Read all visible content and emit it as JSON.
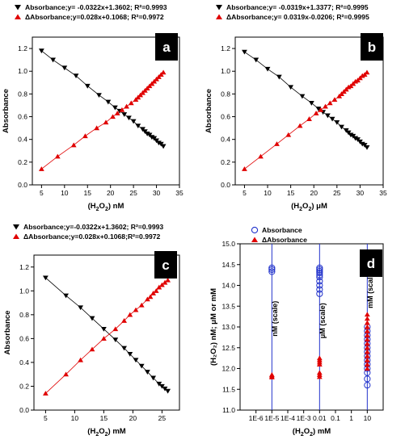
{
  "colors": {
    "absorbance": "#000000",
    "delta": "#e00000",
    "d_abs": "#2233cc",
    "d_delta": "#e00000",
    "badge": "#000000"
  },
  "chart_data": [
    {
      "id": "a",
      "type": "scatter",
      "badge": "a",
      "xlabel_main": "(H",
      "xlabel_sub": "2",
      "xlabel_mid": "O",
      "xlabel_sub2": "2",
      "xlabel_unit": ") nM",
      "ylabel": "Absorbance",
      "xlim": [
        3,
        35
      ],
      "ylim": [
        0.0,
        1.3
      ],
      "xticks": [
        5,
        10,
        15,
        20,
        25,
        30,
        35
      ],
      "xtick_labels": [
        "5",
        "10",
        "15",
        "20",
        "25",
        "30",
        "35"
      ],
      "yticks": [
        0.0,
        0.2,
        0.4,
        0.6,
        0.8,
        1.0,
        1.2
      ],
      "ytick_labels": [
        "0.0",
        "0.2",
        "0.4",
        "0.6",
        "0.8",
        "1.0",
        "1.2"
      ],
      "legend": [
        "Absorbance;y= -0.0322x+1.3602; R²=0.9993",
        "ΔAbsorbance;y=0.028x+0.1068; R²=0.9972"
      ],
      "series": [
        {
          "marker": "down",
          "x": [
            5,
            7.5,
            10,
            12.5,
            15,
            17.5,
            19.5,
            21,
            22,
            23,
            24,
            25,
            26,
            27,
            27.5,
            28,
            28.5,
            29,
            29.5,
            30,
            30.5,
            31,
            31.5
          ],
          "y": [
            1.18,
            1.1,
            1.03,
            0.96,
            0.87,
            0.79,
            0.73,
            0.68,
            0.65,
            0.62,
            0.59,
            0.56,
            0.52,
            0.49,
            0.47,
            0.45,
            0.44,
            0.42,
            0.41,
            0.39,
            0.37,
            0.36,
            0.34
          ]
        },
        {
          "marker": "up",
          "x": [
            5,
            8.5,
            12,
            14.5,
            17,
            19,
            20.5,
            21.5,
            22.5,
            23.5,
            24.5,
            25.5,
            26,
            26.5,
            27,
            27.5,
            28,
            28.5,
            29,
            29.5,
            30,
            30.5,
            31,
            31.5
          ],
          "y": [
            0.14,
            0.25,
            0.35,
            0.43,
            0.5,
            0.55,
            0.6,
            0.63,
            0.66,
            0.69,
            0.72,
            0.75,
            0.77,
            0.79,
            0.81,
            0.83,
            0.85,
            0.87,
            0.89,
            0.91,
            0.93,
            0.95,
            0.97,
            0.99
          ]
        }
      ]
    },
    {
      "id": "b",
      "type": "scatter",
      "badge": "b",
      "xlabel_main": "(H",
      "xlabel_sub": "2",
      "xlabel_mid": "O",
      "xlabel_sub2": "2",
      "xlabel_unit": ") μM",
      "ylabel": "Absorbance",
      "xlim": [
        3,
        35
      ],
      "ylim": [
        0.0,
        1.3
      ],
      "xticks": [
        5,
        10,
        15,
        20,
        25,
        30,
        35
      ],
      "xtick_labels": [
        "5",
        "10",
        "15",
        "20",
        "25",
        "30",
        "35"
      ],
      "yticks": [
        0.0,
        0.2,
        0.4,
        0.6,
        0.8,
        1.0,
        1.2
      ],
      "ytick_labels": [
        "0.0",
        "0.2",
        "0.4",
        "0.6",
        "0.8",
        "1.0",
        "1.2"
      ],
      "legend": [
        "Absorbance;y= -0.0319x+1.3377; R²=0.9995",
        "ΔAbsorbance;y= 0.0319x-0.0206; R²=0.9995"
      ],
      "series": [
        {
          "marker": "down",
          "x": [
            5,
            7.5,
            10,
            12.5,
            15,
            17.5,
            19.5,
            21,
            22,
            23,
            24,
            25,
            26,
            27,
            27.5,
            28,
            28.5,
            29,
            29.5,
            30,
            30.5,
            31,
            31.5
          ],
          "y": [
            1.17,
            1.1,
            1.02,
            0.95,
            0.86,
            0.78,
            0.72,
            0.67,
            0.64,
            0.61,
            0.58,
            0.55,
            0.51,
            0.48,
            0.46,
            0.44,
            0.43,
            0.41,
            0.4,
            0.38,
            0.36,
            0.35,
            0.33
          ]
        },
        {
          "marker": "up",
          "x": [
            5,
            8.5,
            12,
            14.5,
            17,
            19,
            20.5,
            21.5,
            22.5,
            23.5,
            24.5,
            25.5,
            26,
            26.5,
            27,
            27.5,
            28,
            28.5,
            29,
            29.5,
            30,
            30.5,
            31,
            31.5
          ],
          "y": [
            0.14,
            0.25,
            0.36,
            0.44,
            0.52,
            0.58,
            0.63,
            0.66,
            0.69,
            0.72,
            0.75,
            0.78,
            0.8,
            0.82,
            0.84,
            0.86,
            0.87,
            0.89,
            0.91,
            0.92,
            0.94,
            0.96,
            0.97,
            0.99
          ]
        }
      ]
    },
    {
      "id": "c",
      "type": "scatter",
      "badge": "c",
      "xlabel_main": "(H",
      "xlabel_sub": "2",
      "xlabel_mid": "O",
      "xlabel_sub2": "2",
      "xlabel_unit": ") mM",
      "ylabel": "Absorbance",
      "xlim": [
        3,
        28
      ],
      "ylim": [
        0.0,
        1.3
      ],
      "xticks": [
        5,
        10,
        15,
        20,
        25
      ],
      "xtick_labels": [
        "5",
        "10",
        "15",
        "20",
        "25"
      ],
      "yticks": [
        0.0,
        0.2,
        0.4,
        0.6,
        0.8,
        1.0,
        1.2
      ],
      "ytick_labels": [
        "0.0",
        "0.2",
        "0.4",
        "0.6",
        "0.8",
        "1.0",
        "1.2"
      ],
      "legend": [
        "Absorbance;y=-0.0322x+1.3602; R²=0.9993",
        "ΔAbsorbance;y=0.028x+0.1068;R²=0.9972"
      ],
      "series": [
        {
          "marker": "down",
          "x": [
            5,
            8.5,
            11,
            13,
            15,
            17,
            18.5,
            19.5,
            20.5,
            21.5,
            22.5,
            23.5,
            24.5,
            25,
            25.5,
            26
          ],
          "y": [
            1.11,
            0.96,
            0.86,
            0.77,
            0.68,
            0.59,
            0.52,
            0.47,
            0.42,
            0.37,
            0.32,
            0.27,
            0.22,
            0.2,
            0.18,
            0.16
          ]
        },
        {
          "marker": "up",
          "x": [
            5,
            8.5,
            11,
            13,
            15,
            17,
            18.5,
            19.5,
            20.5,
            21.5,
            22.5,
            23,
            23.5,
            24,
            24.5,
            25,
            25.5,
            26
          ],
          "y": [
            0.14,
            0.3,
            0.42,
            0.51,
            0.6,
            0.68,
            0.75,
            0.8,
            0.84,
            0.88,
            0.93,
            0.95,
            0.98,
            1.0,
            1.03,
            1.05,
            1.07,
            1.09
          ]
        }
      ]
    },
    {
      "id": "d",
      "type": "scatter",
      "badge": "d",
      "xscale": "log",
      "xlabel_main": "(H",
      "xlabel_sub": "2",
      "xlabel_mid": "O",
      "xlabel_sub2": "2",
      "xlabel_unit": ") mM",
      "ylabel": "(H₂O₂) nM; μM or mM",
      "xlim": [
        1e-07,
        100
      ],
      "ylim": [
        11.0,
        15.0
      ],
      "xticks": [
        1e-06,
        1e-05,
        0.0001,
        0.001,
        0.01,
        0.1,
        1,
        10
      ],
      "xtick_labels": [
        "1E-6",
        "1E-5",
        "1E-4",
        "1E-3",
        "0.01",
        "0.1",
        "1",
        "10"
      ],
      "yticks": [
        11.0,
        11.5,
        12.0,
        12.5,
        13.0,
        13.5,
        14.0,
        14.5,
        15.0
      ],
      "ytick_labels": [
        "11.0",
        "11.5",
        "12.0",
        "12.5",
        "13.0",
        "13.5",
        "14.0",
        "14.5",
        "15.0"
      ],
      "legend": [
        "Absorbance",
        "ΔAbsorbance"
      ],
      "annotations": [
        {
          "text": "nM (scale)",
          "x": 1.5e-05,
          "y": 13.2
        },
        {
          "text": "μM (scale)",
          "x": 0.015,
          "y": 13.15
        },
        {
          "text": "mM (scale)",
          "x": 15,
          "y": 13.9
        }
      ],
      "vlines": [
        1e-05,
        0.01,
        10
      ],
      "series": [
        {
          "marker": "circle",
          "x": [
            1e-05,
            1e-05,
            1e-05,
            0.01,
            0.01,
            0.01,
            0.01,
            0.01,
            0.01,
            0.01,
            0.01,
            0.01,
            0.01,
            10,
            10,
            10,
            10,
            10,
            10,
            10,
            10,
            10,
            10,
            10,
            10,
            10,
            10
          ],
          "y": [
            14.42,
            14.38,
            14.33,
            14.42,
            14.38,
            14.34,
            14.3,
            14.25,
            14.2,
            14.1,
            14.0,
            13.9,
            13.8,
            13.0,
            12.9,
            12.8,
            12.7,
            12.6,
            12.5,
            12.4,
            12.3,
            12.2,
            12.1,
            12.0,
            11.9,
            11.75,
            11.6
          ]
        },
        {
          "marker": "up",
          "x": [
            1e-05,
            1e-05,
            1e-05,
            0.01,
            0.01,
            0.01,
            0.01,
            0.01,
            0.01,
            0.01,
            10,
            10,
            10,
            10,
            10,
            10,
            10,
            10,
            10,
            10,
            10,
            10,
            10,
            10
          ],
          "y": [
            11.85,
            11.82,
            11.79,
            12.25,
            12.2,
            12.15,
            12.1,
            11.9,
            11.85,
            11.8,
            13.3,
            13.2,
            13.1,
            13.0,
            12.9,
            12.8,
            12.7,
            12.6,
            12.5,
            12.4,
            12.3,
            12.2,
            12.1,
            12.0
          ]
        }
      ]
    }
  ]
}
